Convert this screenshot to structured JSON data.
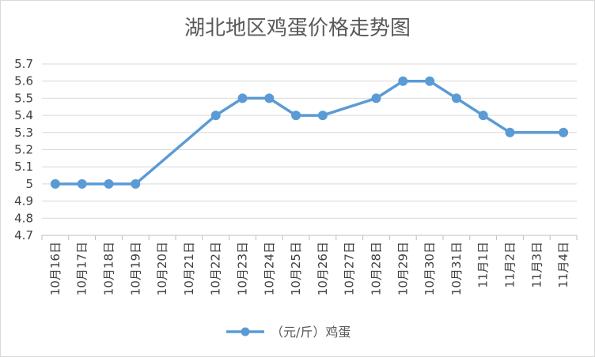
{
  "chart_data": {
    "type": "line",
    "title": "湖北地区鸡蛋价格走势图",
    "categories": [
      "10月16日",
      "10月17日",
      "10月18日",
      "10月19日",
      "10月20日",
      "10月21日",
      "10月22日",
      "10月23日",
      "10月24日",
      "10月25日",
      "10月26日",
      "10月27日",
      "10月28日",
      "10月29日",
      "10月30日",
      "10月31日",
      "11月1日",
      "11月2日",
      "11月3日",
      "11月4日"
    ],
    "series": [
      {
        "name": "（元/斤）鸡蛋",
        "color": "#5b9bd5",
        "values": [
          5.0,
          5.0,
          5.0,
          5.0,
          null,
          null,
          5.4,
          5.5,
          5.5,
          5.4,
          5.4,
          null,
          5.5,
          5.6,
          5.6,
          5.5,
          5.4,
          5.3,
          null,
          5.3
        ]
      }
    ],
    "y_ticks": [
      "4.7",
      "4.8",
      "4.9",
      "5",
      "5.1",
      "5.2",
      "5.3",
      "5.4",
      "5.5",
      "5.6",
      "5.7"
    ],
    "ylim": [
      4.7,
      5.7
    ],
    "grid": true,
    "legend_position": "bottom",
    "colors": {
      "grid": "#d9d9d9",
      "axis": "#bfbfbf",
      "text": "#404040"
    }
  }
}
